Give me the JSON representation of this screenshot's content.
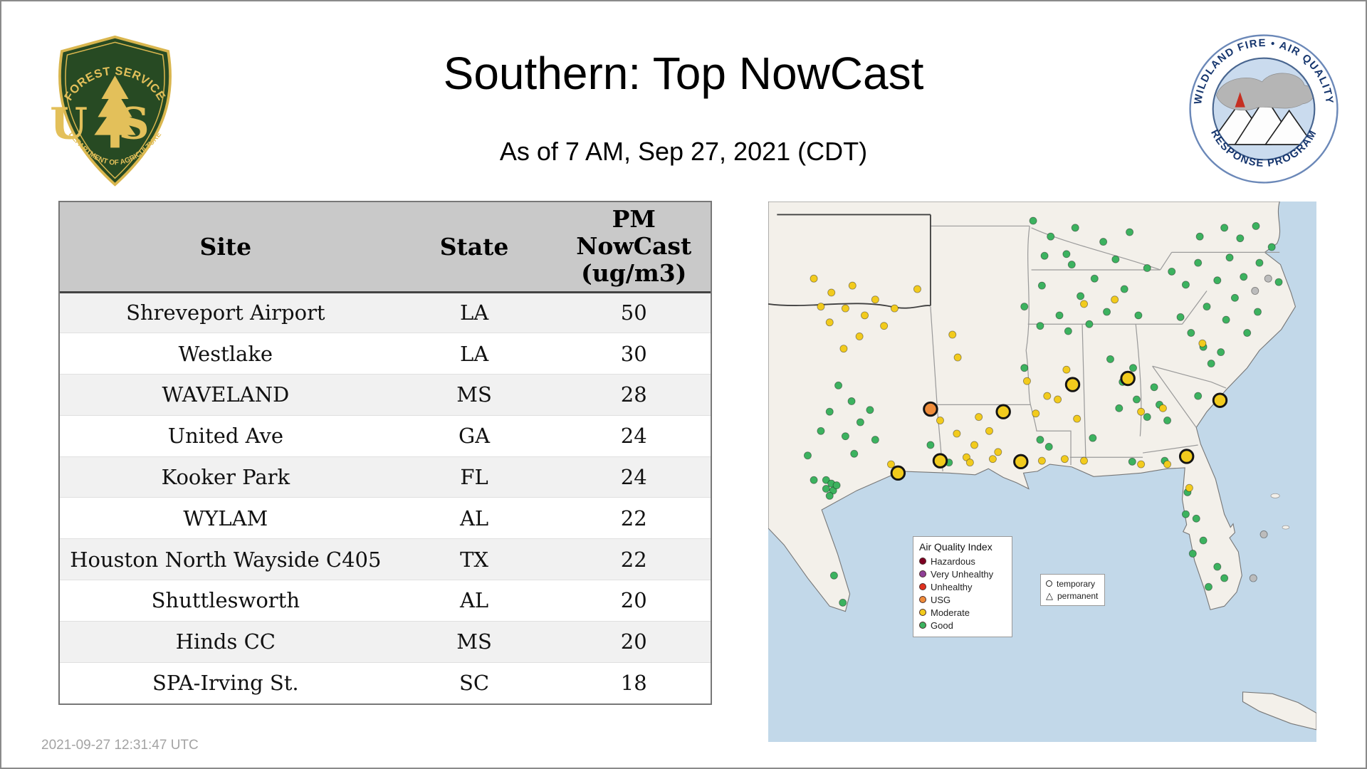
{
  "page": {
    "title": "Southern: Top NowCast",
    "subtitle": "As of  7 AM, Sep 27, 2021 (CDT)",
    "timestamp": "2021-09-27 12:31:47 UTC"
  },
  "logos": {
    "forest_service": {
      "top_text": "FOREST SERVICE",
      "center_text": "US",
      "bottom_text": "DEPARTMENT OF AGRICULTURE"
    },
    "airfire": {
      "top_text": "WILDLAND FIRE • AIR QUALITY",
      "bottom_text": "RESPONSE PROGRAM"
    }
  },
  "table": {
    "columns": [
      "Site",
      "State",
      "PM\nNowCast\n(ug/m3)"
    ],
    "rows": [
      {
        "site": "Shreveport Airport",
        "state": "LA",
        "value": 50
      },
      {
        "site": "Westlake",
        "state": "LA",
        "value": 30
      },
      {
        "site": "WAVELAND",
        "state": "MS",
        "value": 28
      },
      {
        "site": "United Ave",
        "state": "GA",
        "value": 24
      },
      {
        "site": "Kooker Park",
        "state": "FL",
        "value": 24
      },
      {
        "site": "WYLAM",
        "state": "AL",
        "value": 22
      },
      {
        "site": "Houston North Wayside C405",
        "state": "TX",
        "value": 22
      },
      {
        "site": "Shuttlesworth",
        "state": "AL",
        "value": 20
      },
      {
        "site": "Hinds CC",
        "state": "MS",
        "value": 20
      },
      {
        "site": "SPA-Irving St.",
        "state": "SC",
        "value": 18
      }
    ]
  },
  "map": {
    "legend": {
      "title": "Air Quality Index",
      "entries": [
        {
          "label": "Hazardous",
          "color": "#7e0023"
        },
        {
          "label": "Very Unhealthy",
          "color": "#8f3f97"
        },
        {
          "label": "Unhealthy",
          "color": "#e0301e"
        },
        {
          "label": "USG",
          "color": "#ef8c3a"
        },
        {
          "label": "Moderate",
          "color": "#f2cb1d"
        },
        {
          "label": "Good",
          "color": "#3cb25f"
        }
      ]
    },
    "marker_legend": [
      {
        "label": "temporary",
        "shape": "circle"
      },
      {
        "label": "permanent",
        "shape": "triangle"
      }
    ],
    "colors": {
      "water": "#c2d8e9",
      "land": "#f3f0ea",
      "state_border": "#9b9b9b",
      "aqi": {
        "g": "#3cb25f",
        "y": "#f2cb1d",
        "o": "#ef8c3a",
        "gr": "#bcbcbc"
      }
    },
    "monitors_small": [
      [
        52,
        88,
        "y"
      ],
      [
        72,
        104,
        "y"
      ],
      [
        96,
        96,
        "y"
      ],
      [
        88,
        122,
        "y"
      ],
      [
        110,
        130,
        "y"
      ],
      [
        70,
        138,
        "y"
      ],
      [
        122,
        112,
        "y"
      ],
      [
        132,
        142,
        "y"
      ],
      [
        104,
        154,
        "y"
      ],
      [
        86,
        168,
        "y"
      ],
      [
        60,
        120,
        "y"
      ],
      [
        144,
        122,
        "y"
      ],
      [
        170,
        100,
        "y"
      ],
      [
        210,
        152,
        "y"
      ],
      [
        216,
        178,
        "y"
      ],
      [
        302,
        22,
        "g"
      ],
      [
        322,
        40,
        "g"
      ],
      [
        350,
        30,
        "g"
      ],
      [
        382,
        46,
        "g"
      ],
      [
        412,
        35,
        "g"
      ],
      [
        340,
        60,
        "g"
      ],
      [
        315,
        62,
        "g"
      ],
      [
        292,
        120,
        "g"
      ],
      [
        312,
        96,
        "g"
      ],
      [
        332,
        130,
        "g"
      ],
      [
        346,
        72,
        "g"
      ],
      [
        356,
        108,
        "g"
      ],
      [
        372,
        88,
        "g"
      ],
      [
        386,
        126,
        "g"
      ],
      [
        396,
        66,
        "g"
      ],
      [
        406,
        100,
        "g"
      ],
      [
        422,
        130,
        "g"
      ],
      [
        432,
        76,
        "g"
      ],
      [
        366,
        140,
        "g"
      ],
      [
        342,
        148,
        "g"
      ],
      [
        310,
        142,
        "g"
      ],
      [
        360,
        117,
        "y"
      ],
      [
        395,
        112,
        "y"
      ],
      [
        460,
        80,
        "g"
      ],
      [
        476,
        95,
        "g"
      ],
      [
        490,
        70,
        "g"
      ],
      [
        500,
        120,
        "g"
      ],
      [
        512,
        90,
        "g"
      ],
      [
        522,
        135,
        "g"
      ],
      [
        482,
        150,
        "g"
      ],
      [
        496,
        166,
        "g"
      ],
      [
        516,
        172,
        "g"
      ],
      [
        532,
        110,
        "g"
      ],
      [
        542,
        86,
        "g"
      ],
      [
        546,
        150,
        "g"
      ],
      [
        558,
        126,
        "g"
      ],
      [
        470,
        132,
        "g"
      ],
      [
        526,
        64,
        "g"
      ],
      [
        560,
        70,
        "g"
      ],
      [
        538,
        42,
        "g"
      ],
      [
        520,
        30,
        "g"
      ],
      [
        492,
        40,
        "g"
      ],
      [
        556,
        28,
        "g"
      ],
      [
        574,
        52,
        "g"
      ],
      [
        582,
        92,
        "g"
      ],
      [
        505,
        185,
        "g"
      ],
      [
        490,
        222,
        "g"
      ],
      [
        495,
        162,
        "y"
      ],
      [
        555,
        102,
        "gr"
      ],
      [
        570,
        88,
        "gr"
      ],
      [
        390,
        180,
        "g"
      ],
      [
        404,
        206,
        "g"
      ],
      [
        420,
        226,
        "g"
      ],
      [
        440,
        212,
        "g"
      ],
      [
        400,
        236,
        "g"
      ],
      [
        432,
        246,
        "g"
      ],
      [
        416,
        190,
        "g"
      ],
      [
        446,
        232,
        "g"
      ],
      [
        455,
        250,
        "g"
      ],
      [
        425,
        240,
        "y"
      ],
      [
        450,
        236,
        "y"
      ],
      [
        305,
        242,
        "y"
      ],
      [
        318,
        222,
        "y"
      ],
      [
        330,
        226,
        "y"
      ],
      [
        352,
        248,
        "y"
      ],
      [
        295,
        205,
        "y"
      ],
      [
        340,
        192,
        "y"
      ],
      [
        320,
        280,
        "g"
      ],
      [
        370,
        270,
        "g"
      ],
      [
        292,
        190,
        "g"
      ],
      [
        310,
        272,
        "g"
      ],
      [
        215,
        265,
        "y"
      ],
      [
        235,
        278,
        "y"
      ],
      [
        252,
        262,
        "y"
      ],
      [
        226,
        292,
        "y"
      ],
      [
        262,
        286,
        "y"
      ],
      [
        196,
        250,
        "y"
      ],
      [
        240,
        246,
        "y"
      ],
      [
        185,
        278,
        "g"
      ],
      [
        206,
        298,
        "g"
      ],
      [
        230,
        298,
        "y"
      ],
      [
        256,
        294,
        "y"
      ],
      [
        312,
        296,
        "y"
      ],
      [
        338,
        294,
        "y"
      ],
      [
        360,
        296,
        "y"
      ],
      [
        425,
        300,
        "y"
      ],
      [
        80,
        210,
        "g"
      ],
      [
        95,
        228,
        "g"
      ],
      [
        70,
        240,
        "g"
      ],
      [
        105,
        252,
        "g"
      ],
      [
        88,
        268,
        "g"
      ],
      [
        116,
        238,
        "g"
      ],
      [
        60,
        262,
        "g"
      ],
      [
        98,
        288,
        "g"
      ],
      [
        122,
        272,
        "g"
      ],
      [
        45,
        290,
        "g"
      ],
      [
        52,
        318,
        "g"
      ],
      [
        66,
        318,
        "g"
      ],
      [
        72,
        322,
        "g"
      ],
      [
        66,
        328,
        "g"
      ],
      [
        74,
        330,
        "g"
      ],
      [
        78,
        324,
        "g"
      ],
      [
        70,
        336,
        "g"
      ],
      [
        140,
        300,
        "y"
      ],
      [
        75,
        427,
        "g"
      ],
      [
        85,
        458,
        "g"
      ],
      [
        478,
        332,
        "g"
      ],
      [
        488,
        362,
        "g"
      ],
      [
        496,
        387,
        "g"
      ],
      [
        512,
        417,
        "g"
      ],
      [
        520,
        430,
        "g"
      ],
      [
        484,
        402,
        "g"
      ],
      [
        476,
        357,
        "g"
      ],
      [
        452,
        296,
        "g"
      ],
      [
        502,
        440,
        "g"
      ],
      [
        415,
        297,
        "g"
      ],
      [
        480,
        327,
        "y"
      ],
      [
        455,
        300,
        "y"
      ],
      [
        553,
        430,
        "gr"
      ],
      [
        565,
        380,
        "gr"
      ]
    ],
    "monitors_large": [
      [
        148,
        310,
        "y"
      ],
      [
        196,
        296,
        "y"
      ],
      [
        288,
        297,
        "y"
      ],
      [
        268,
        240,
        "y"
      ],
      [
        185,
        237,
        "o"
      ],
      [
        347,
        209,
        "y"
      ],
      [
        410,
        202,
        "y"
      ],
      [
        515,
        227,
        "y"
      ],
      [
        477,
        291,
        "y"
      ]
    ]
  }
}
